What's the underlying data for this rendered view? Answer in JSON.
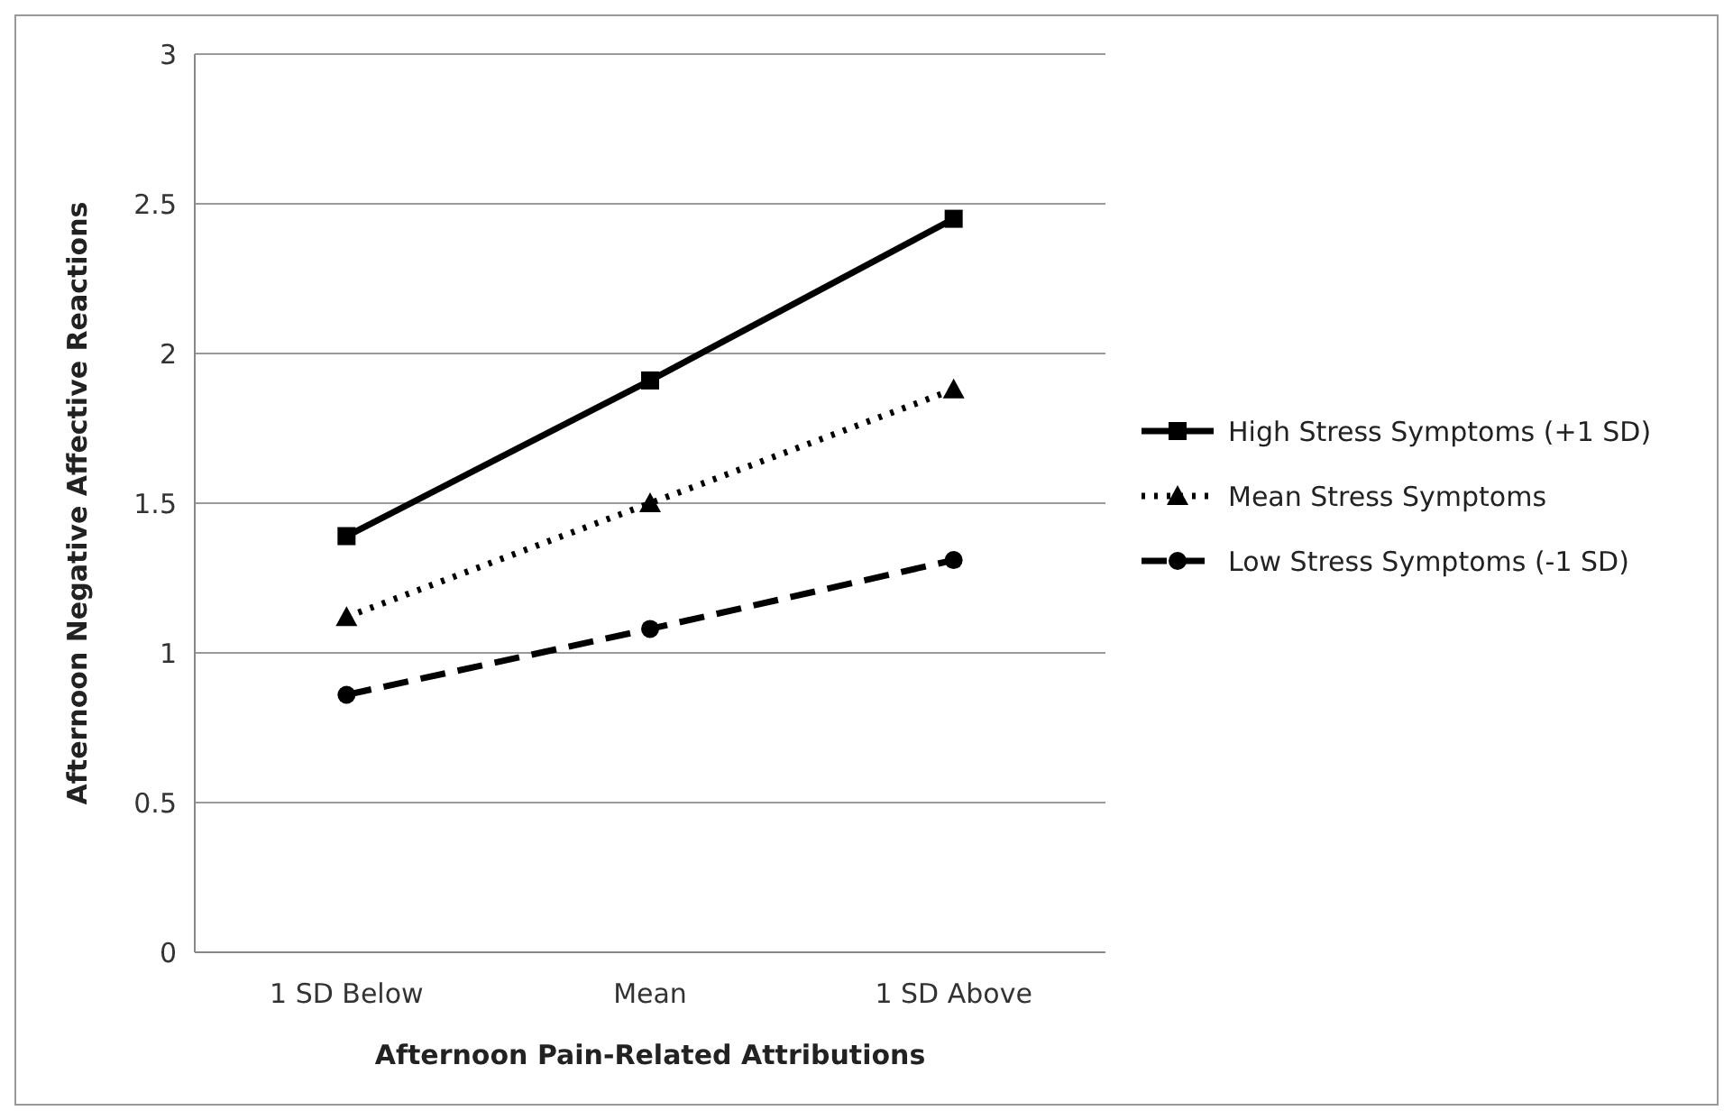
{
  "chart_data": {
    "type": "line",
    "xlabel": "Afternoon Pain-Related Attributions",
    "ylabel": "Afternoon Negative Affective Reactions",
    "categories": [
      "1 SD Below",
      "Mean",
      "1 SD Above"
    ],
    "series": [
      {
        "name": "High Stress Symptoms (+1 SD)",
        "color": "#000000",
        "values": [
          1.39,
          1.91,
          2.45
        ],
        "marker": "square",
        "line_style": "solid"
      },
      {
        "name": "Mean Stress Symptoms",
        "color": "#000000",
        "values": [
          1.12,
          1.5,
          1.88
        ],
        "marker": "triangle",
        "line_style": "dotted"
      },
      {
        "name": "Low Stress Symptoms (-1 SD)",
        "color": "#000000",
        "values": [
          0.86,
          1.08,
          1.31
        ],
        "marker": "circle",
        "line_style": "dashed"
      }
    ],
    "ylim": [
      0,
      3
    ],
    "yticks": [
      0,
      0.5,
      1,
      1.5,
      2,
      2.5,
      3
    ],
    "grid": "y",
    "legend": "right"
  }
}
